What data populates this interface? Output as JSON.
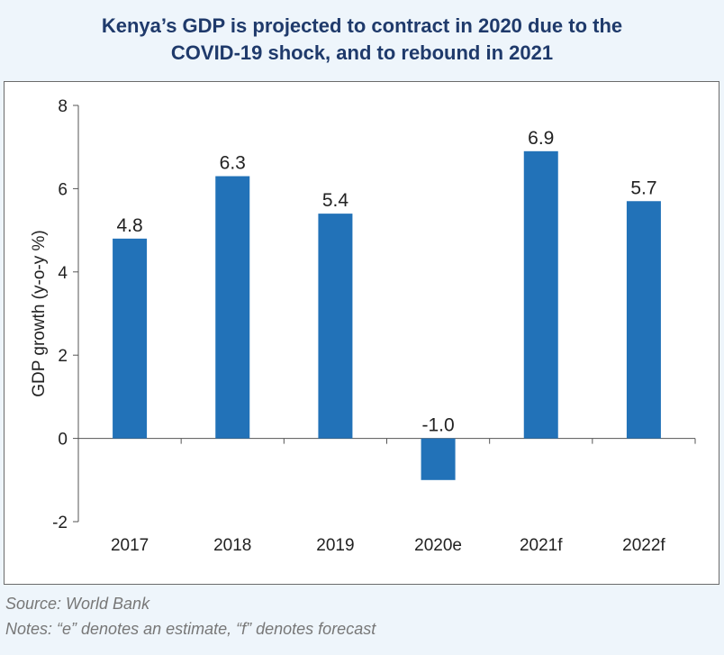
{
  "title_line1": "Kenya’s GDP is projected to contract in 2020 due to the",
  "title_line2": "COVID-19 shock, and to rebound in 2021",
  "source": "Source: World Bank",
  "notes": "Notes: “e” denotes an estimate, “f” denotes forecast",
  "colors": {
    "bar": "#2272b8",
    "title": "#1f3a6b",
    "background": "#eef5fb"
  },
  "chart_data": {
    "type": "bar",
    "categories": [
      "2017",
      "2018",
      "2019",
      "2020e",
      "2021f",
      "2022f"
    ],
    "values": [
      4.8,
      6.3,
      5.4,
      -1.0,
      6.9,
      5.7
    ],
    "value_labels": [
      "4.8",
      "6.3",
      "5.4",
      "-1.0",
      "6.9",
      "5.7"
    ],
    "ylabel": "GDP growth (y-o-y %)",
    "xlabel": "",
    "ylim": [
      -2,
      8
    ],
    "yticks": [
      -2,
      0,
      2,
      4,
      6,
      8
    ],
    "grid": false,
    "legend": "none"
  }
}
